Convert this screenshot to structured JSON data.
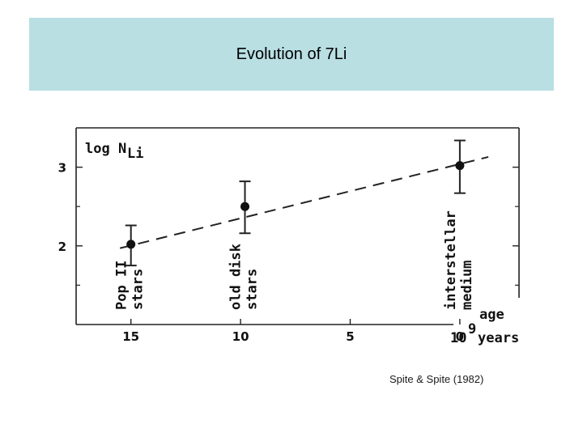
{
  "slide": {
    "title": "Evolution of 7Li",
    "citation": "Spite & Spite  (1982)"
  },
  "chart_data": {
    "type": "scatter",
    "title": "",
    "xlabel_top": "age",
    "xlabel": "10^9 years",
    "xlabel_base": "10",
    "xlabel_exp": "9",
    "xlabel_unit": "years",
    "ylabel": "log N_Li",
    "ylabel_main": "log N",
    "ylabel_sub": "Li",
    "x_reversed": true,
    "xlim": [
      17.5,
      -2.7
    ],
    "ylim": [
      1.0,
      3.5
    ],
    "xticks": [
      15,
      10,
      5,
      0
    ],
    "xtick_labels": [
      "15",
      "10",
      "5",
      "0"
    ],
    "yticks": [
      2,
      3
    ],
    "ytick_labels": [
      "2",
      "3"
    ],
    "series": [
      {
        "name": "observations",
        "points": [
          {
            "label": "Pop II stars",
            "label_lines": [
              "Pop II",
              "stars"
            ],
            "x": 15,
            "y": 2.02,
            "err_low": 0.27,
            "err_high": 0.24
          },
          {
            "label": "old disk stars",
            "label_lines": [
              "old disk",
              "stars"
            ],
            "x": 9.8,
            "y": 2.5,
            "err_low": 0.34,
            "err_high": 0.32
          },
          {
            "label": "interstellar medium",
            "label_lines": [
              "interstellar",
              "medium"
            ],
            "x": 0,
            "y": 3.02,
            "err_low": 0.35,
            "err_high": 0.32
          }
        ]
      }
    ],
    "fit_line": {
      "style": "dashed",
      "x": [
        15.5,
        -1.3
      ],
      "y": [
        1.97,
        3.13
      ]
    }
  }
}
